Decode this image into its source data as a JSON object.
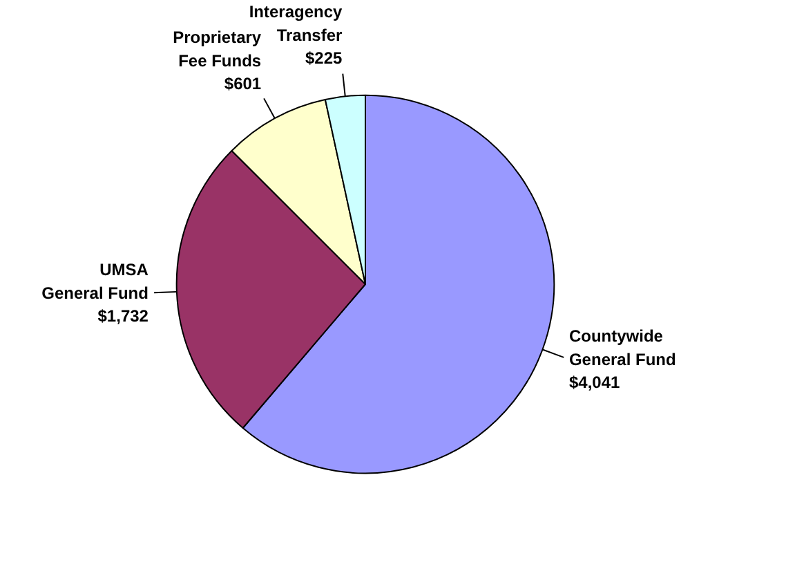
{
  "chart_data": {
    "type": "pie",
    "categories": [
      "Countywide General Fund",
      "UMSA General Fund",
      "Proprietary Fee Funds",
      "Interagency Transfer"
    ],
    "values": [
      4041,
      1732,
      601,
      225
    ],
    "value_labels": [
      "$4,041",
      "$1,732",
      "$601",
      "$225"
    ],
    "colors": [
      "#9999ff",
      "#993366",
      "#ffffcc",
      "#ccffff"
    ]
  }
}
